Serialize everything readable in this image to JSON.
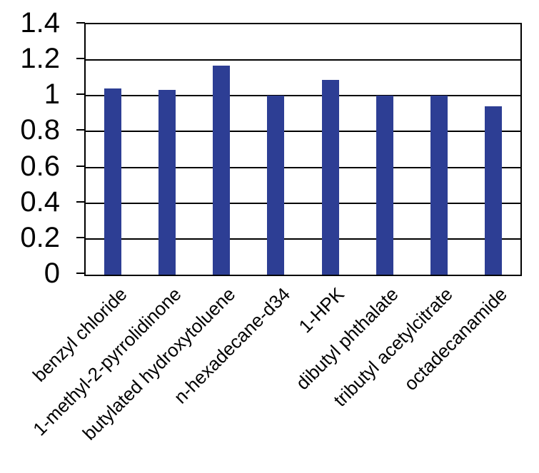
{
  "chart_data": {
    "type": "bar",
    "title": "",
    "xlabel": "",
    "ylabel": "",
    "categories": [
      "benzyl chloride",
      "1-methyl-2-pyrrolidinone",
      "butylated hydroxytoluene",
      "n-hexadecane-d34",
      "1-HPK",
      "dibutyl phthalate",
      "tributyl acetylcitrate",
      "octadecanamide"
    ],
    "values": [
      1.04,
      1.035,
      1.17,
      1.0,
      1.09,
      1.0,
      1.0,
      0.94
    ],
    "ylim": [
      0,
      1.4
    ],
    "ytick_step": 0.2,
    "yticks": [
      {
        "value": 1.4,
        "label": "1.4"
      },
      {
        "value": 1.2,
        "label": "1.2"
      },
      {
        "value": 1.0,
        "label": "1"
      },
      {
        "value": 0.8,
        "label": "0.8"
      },
      {
        "value": 0.6,
        "label": "0.6"
      },
      {
        "value": 0.4,
        "label": "0.4"
      },
      {
        "value": 0.2,
        "label": "0.2"
      },
      {
        "value": 0.0,
        "label": "0"
      }
    ],
    "grid": true,
    "legend": false,
    "x_label_rotation_deg": 45,
    "colors": {
      "bar": "#2D3E94",
      "axis": "#000000",
      "gridline": "#000000",
      "background": "#FFFFFF",
      "text": "#000000"
    }
  }
}
